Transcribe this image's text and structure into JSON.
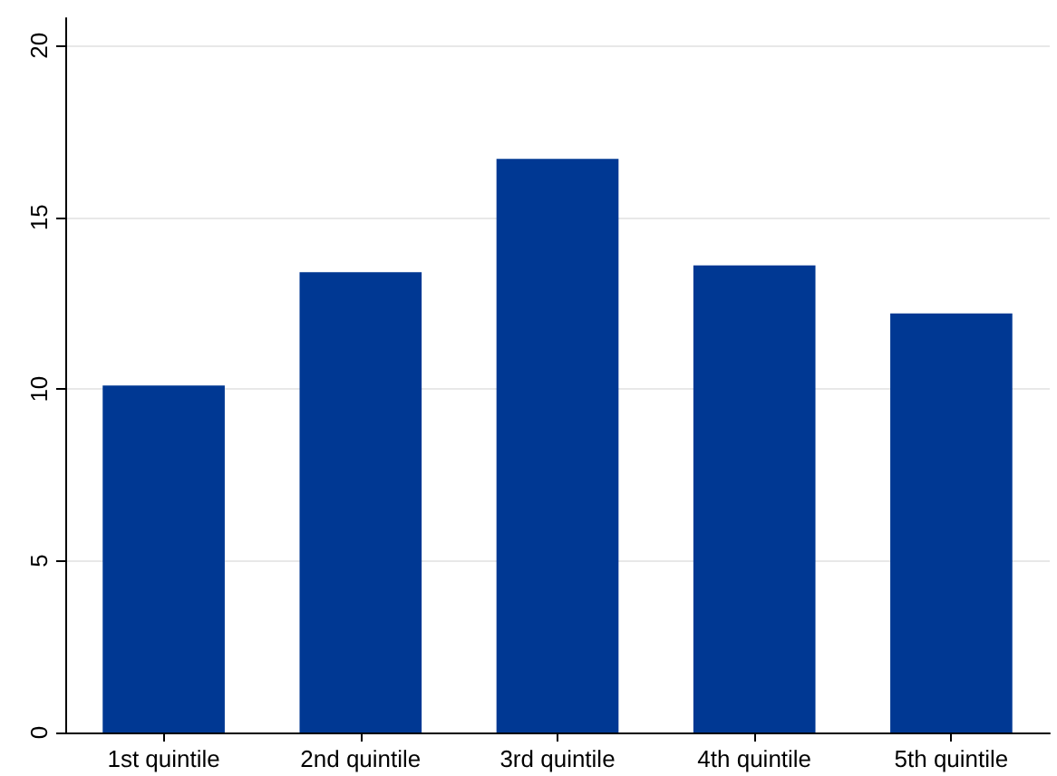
{
  "chart_data": {
    "type": "bar",
    "categories": [
      "1st quintile",
      "2nd quintile",
      "3rd quintile",
      "4th quintile",
      "5th quintile"
    ],
    "values": [
      10.1,
      13.4,
      16.7,
      13.6,
      12.2
    ],
    "color": "#003893",
    "ylim": [
      0,
      20.8
    ],
    "yticks": [
      0,
      5,
      10,
      15,
      20
    ],
    "grid": "y"
  }
}
